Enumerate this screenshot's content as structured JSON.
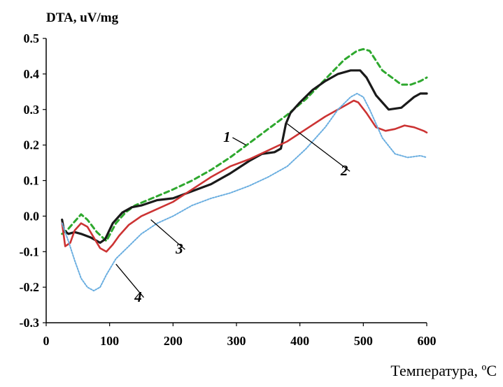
{
  "chart_data": {
    "type": "line",
    "title": "",
    "ylabel": "DTA, uV/mg",
    "xlabel": "Температура, ºС",
    "xlim": [
      0,
      600
    ],
    "ylim": [
      -0.3,
      0.5
    ],
    "x_ticks": [
      "0",
      "100",
      "200",
      "300",
      "400",
      "500",
      "600"
    ],
    "y_ticks": [
      "0.5",
      "0.4",
      "0.3",
      "0.2",
      "0.1",
      "0.0",
      "-0.1",
      "-0.2",
      "-0.3"
    ],
    "grid": false,
    "legend": "none",
    "series": [
      {
        "name": "1",
        "color": "#2ea82e",
        "style": "dashed",
        "x": [
          25,
          33,
          45,
          55,
          65,
          80,
          95,
          110,
          125,
          140,
          160,
          180,
          200,
          230,
          260,
          290,
          320,
          350,
          380,
          410,
          440,
          470,
          490,
          500,
          510,
          530,
          560,
          575,
          590,
          600
        ],
        "y": [
          -0.05,
          -0.04,
          -0.015,
          0.005,
          -0.01,
          -0.045,
          -0.07,
          -0.02,
          0.01,
          0.03,
          0.045,
          0.06,
          0.075,
          0.1,
          0.13,
          0.165,
          0.205,
          0.245,
          0.285,
          0.33,
          0.385,
          0.44,
          0.465,
          0.47,
          0.465,
          0.41,
          0.37,
          0.37,
          0.38,
          0.39
        ]
      },
      {
        "name": "2",
        "color": "#1a1a1a",
        "style": "solid",
        "x": [
          25,
          28,
          35,
          45,
          55,
          70,
          85,
          93,
          105,
          120,
          135,
          150,
          175,
          200,
          230,
          260,
          290,
          320,
          340,
          360,
          370,
          378,
          385,
          400,
          420,
          440,
          460,
          480,
          495,
          505,
          520,
          540,
          560,
          580,
          590,
          600
        ],
        "y": [
          -0.01,
          -0.04,
          -0.05,
          -0.045,
          -0.05,
          -0.06,
          -0.075,
          -0.065,
          -0.02,
          0.01,
          0.025,
          0.03,
          0.045,
          0.05,
          0.07,
          0.09,
          0.12,
          0.155,
          0.175,
          0.18,
          0.19,
          0.26,
          0.29,
          0.32,
          0.355,
          0.38,
          0.4,
          0.41,
          0.41,
          0.39,
          0.34,
          0.3,
          0.305,
          0.335,
          0.345,
          0.345
        ]
      },
      {
        "name": "3",
        "color": "#cc3333",
        "style": "solid",
        "x": [
          25,
          30,
          38,
          45,
          55,
          65,
          75,
          85,
          95,
          105,
          115,
          130,
          150,
          175,
          200,
          230,
          260,
          290,
          320,
          350,
          380,
          410,
          440,
          470,
          485,
          492,
          505,
          520,
          535,
          550,
          565,
          580,
          595,
          600
        ],
        "y": [
          -0.02,
          -0.085,
          -0.075,
          -0.04,
          -0.02,
          -0.03,
          -0.06,
          -0.09,
          -0.1,
          -0.08,
          -0.055,
          -0.025,
          0.0,
          0.02,
          0.04,
          0.075,
          0.11,
          0.14,
          0.16,
          0.185,
          0.21,
          0.245,
          0.28,
          0.31,
          0.325,
          0.32,
          0.29,
          0.25,
          0.24,
          0.245,
          0.255,
          0.25,
          0.24,
          0.235
        ]
      },
      {
        "name": "4",
        "color": "#6aaee0",
        "style": "dotted",
        "x": [
          25,
          35,
          45,
          55,
          65,
          75,
          85,
          95,
          110,
          130,
          150,
          175,
          200,
          230,
          260,
          290,
          320,
          350,
          380,
          410,
          440,
          460,
          480,
          490,
          500,
          510,
          530,
          550,
          570,
          590,
          600
        ],
        "y": [
          -0.02,
          -0.07,
          -0.125,
          -0.175,
          -0.2,
          -0.21,
          -0.2,
          -0.165,
          -0.12,
          -0.085,
          -0.05,
          -0.02,
          0.0,
          0.03,
          0.05,
          0.065,
          0.085,
          0.11,
          0.14,
          0.19,
          0.25,
          0.3,
          0.335,
          0.345,
          0.335,
          0.3,
          0.22,
          0.175,
          0.165,
          0.17,
          0.165
        ]
      }
    ],
    "curve_labels": [
      {
        "text": "1",
        "x": 285,
        "y": 0.225,
        "to_x": 315,
        "to_y": 0.2
      },
      {
        "text": "2",
        "x": 470,
        "y": 0.13,
        "to_x": 380,
        "to_y": 0.26
      },
      {
        "text": "3",
        "x": 210,
        "y": -0.09,
        "to_x": 165,
        "to_y": -0.01
      },
      {
        "text": "4",
        "x": 145,
        "y": -0.225,
        "to_x": 110,
        "to_y": -0.135
      }
    ]
  }
}
